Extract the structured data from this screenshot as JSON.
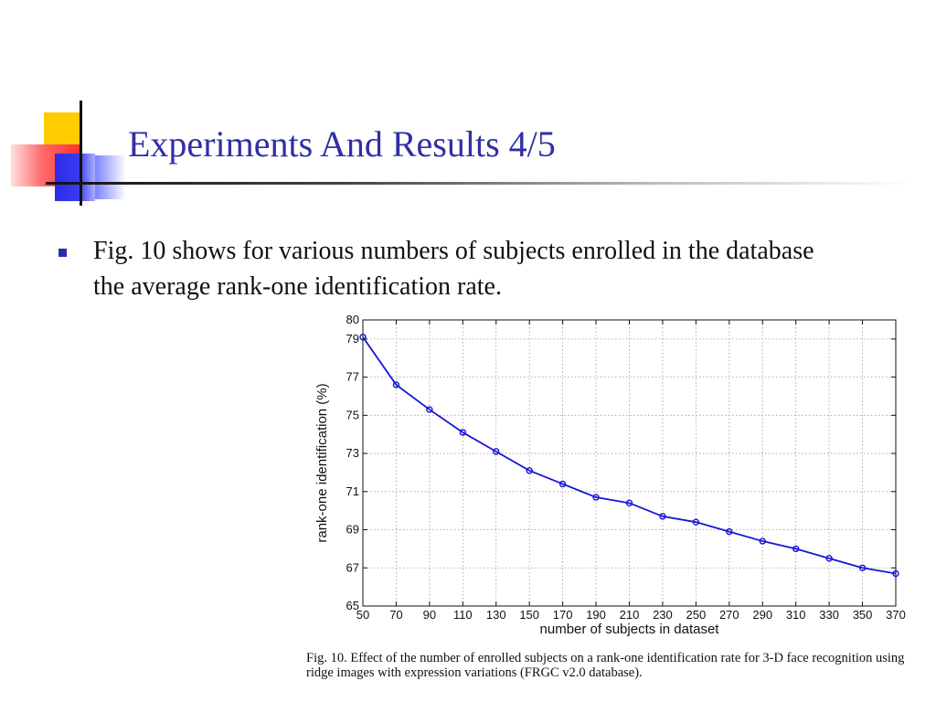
{
  "slide": {
    "title": "Experiments And Results 4/5",
    "bullet": "Fig. 10 shows for various numbers of subjects enrolled in the database the average rank-one identification rate.",
    "colors": {
      "title": "#2f2fa6",
      "bullet": "#2a2ab0",
      "line": "#1515d8"
    }
  },
  "figure": {
    "caption": "Fig. 10.   Effect of the number of enrolled subjects on a rank-one identification rate for 3-D face recognition using ridge images with expression variations (FRGC v2.0 database)."
  },
  "chart_data": {
    "type": "line",
    "xlabel": "number of subjects in dataset",
    "ylabel": "rank-one identification (%)",
    "x": [
      50,
      70,
      90,
      110,
      130,
      150,
      170,
      190,
      210,
      230,
      250,
      270,
      290,
      310,
      330,
      350,
      370
    ],
    "y": [
      79.1,
      76.6,
      75.3,
      74.1,
      73.1,
      72.1,
      71.4,
      70.7,
      70.4,
      69.7,
      69.4,
      68.9,
      68.4,
      68.0,
      67.5,
      67.0,
      66.7
    ],
    "xlim": [
      50,
      370
    ],
    "ylim": [
      65,
      80
    ],
    "xticks": [
      "50",
      "70",
      "90",
      "110",
      "130",
      "150",
      "170",
      "190",
      "210",
      "230",
      "250",
      "270",
      "290",
      "310",
      "330",
      "350",
      "370"
    ],
    "yticks": [
      "65",
      "67",
      "69",
      "71",
      "73",
      "75",
      "77",
      "79",
      "80"
    ],
    "grid": true,
    "marker": "circle"
  }
}
